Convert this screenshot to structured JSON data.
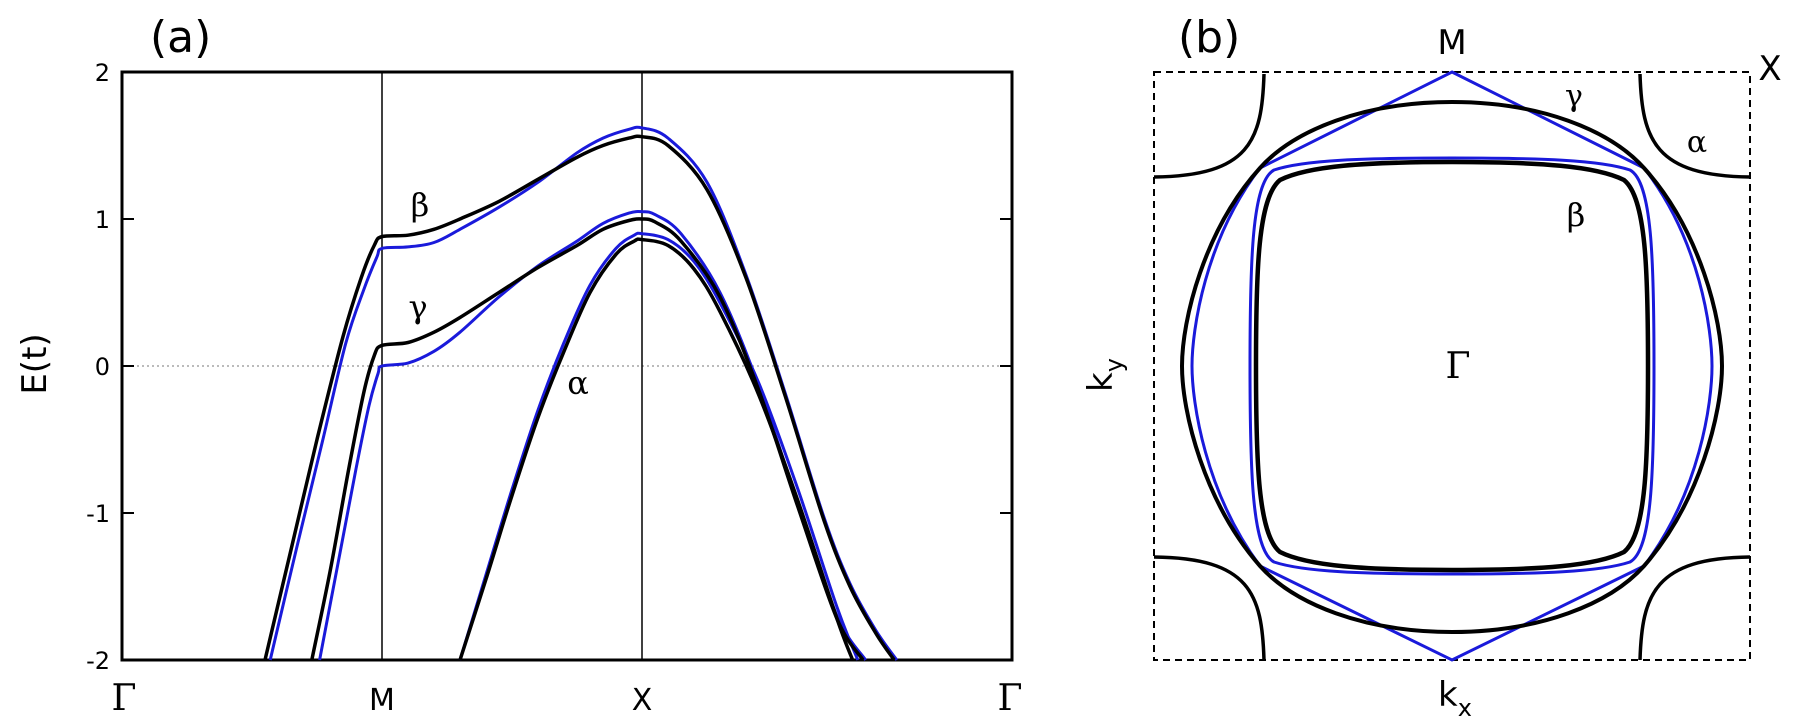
{
  "panel_a": {
    "label": "(a)",
    "chart_data": {
      "type": "line",
      "ylabel": "E(t)",
      "ylim": [
        -2,
        2
      ],
      "yticks": [
        "-2",
        "-1",
        "0",
        "1",
        "2"
      ],
      "xticks": [
        "Γ",
        "M",
        "X",
        "Γ"
      ],
      "x_positions": [
        0,
        1,
        2,
        3.5
      ],
      "zero_line": "dotted",
      "vertical_lines_at": [
        "M",
        "X"
      ],
      "band_labels": [
        {
          "text": "β",
          "x": 1.15,
          "y": 1.08
        },
        {
          "text": "γ",
          "x": 1.14,
          "y": 0.33
        },
        {
          "text": "α",
          "x": 1.75,
          "y": -0.12
        }
      ],
      "series": [
        {
          "color": "#000000",
          "band": "β",
          "x": [
            0.55,
            0.65,
            0.75,
            0.85,
            0.92,
            0.97,
            1.0,
            1.1,
            1.2,
            1.3,
            1.45,
            1.6,
            1.75,
            1.85,
            1.95,
            2.0,
            2.1,
            2.25,
            2.4,
            2.55,
            2.7,
            2.8,
            2.9,
            2.97
          ],
          "y": [
            -2.0,
            -1.25,
            -0.5,
            0.2,
            0.6,
            0.82,
            0.88,
            0.89,
            0.93,
            1.0,
            1.12,
            1.27,
            1.42,
            1.5,
            1.55,
            1.56,
            1.5,
            1.2,
            0.6,
            -0.2,
            -1.05,
            -1.5,
            -1.82,
            -2.0
          ]
        },
        {
          "color": "#1a1adb",
          "band": "β",
          "x": [
            0.57,
            0.67,
            0.77,
            0.86,
            0.93,
            0.98,
            1.0,
            1.1,
            1.2,
            1.3,
            1.45,
            1.6,
            1.75,
            1.85,
            1.95,
            2.0,
            2.1,
            2.25,
            2.4,
            2.55,
            2.7,
            2.8,
            2.9,
            2.98
          ],
          "y": [
            -2.0,
            -1.25,
            -0.52,
            0.15,
            0.52,
            0.74,
            0.8,
            0.81,
            0.84,
            0.93,
            1.08,
            1.25,
            1.45,
            1.55,
            1.61,
            1.62,
            1.55,
            1.25,
            0.62,
            -0.18,
            -1.03,
            -1.48,
            -1.8,
            -2.0
          ]
        },
        {
          "color": "#000000",
          "band": "γ",
          "x": [
            0.73,
            0.8,
            0.87,
            0.93,
            0.97,
            1.0,
            1.1,
            1.2,
            1.3,
            1.45,
            1.6,
            1.75,
            1.85,
            1.95,
            2.0,
            2.05,
            2.15,
            2.3,
            2.45,
            2.6,
            2.75,
            2.85
          ],
          "y": [
            -2.0,
            -1.4,
            -0.72,
            -0.18,
            0.07,
            0.14,
            0.16,
            0.23,
            0.33,
            0.5,
            0.67,
            0.82,
            0.93,
            0.99,
            1.0,
            0.98,
            0.85,
            0.47,
            -0.17,
            -0.96,
            -1.72,
            -2.0
          ]
        },
        {
          "color": "#1a1adb",
          "band": "γ",
          "x": [
            0.76,
            0.83,
            0.9,
            0.95,
            0.985,
            1.0,
            1.1,
            1.2,
            1.3,
            1.45,
            1.6,
            1.75,
            1.85,
            1.95,
            2.0,
            2.05,
            2.15,
            2.3,
            2.45,
            2.6,
            2.75,
            2.86
          ],
          "y": [
            -2.0,
            -1.35,
            -0.7,
            -0.27,
            -0.05,
            0.0,
            0.02,
            0.1,
            0.23,
            0.47,
            0.68,
            0.85,
            0.97,
            1.04,
            1.05,
            1.03,
            0.9,
            0.5,
            -0.14,
            -0.94,
            -1.7,
            -2.0
          ]
        },
        {
          "color": "#000000",
          "band": "α",
          "x": [
            1.3,
            1.4,
            1.5,
            1.6,
            1.7,
            1.8,
            1.9,
            1.97,
            2.0,
            2.1,
            2.2,
            2.3,
            2.45,
            2.6,
            2.75,
            2.81
          ],
          "y": [
            -2.0,
            -1.45,
            -0.88,
            -0.35,
            0.1,
            0.5,
            0.76,
            0.85,
            0.86,
            0.82,
            0.66,
            0.37,
            -0.2,
            -0.92,
            -1.72,
            -2.0
          ]
        },
        {
          "color": "#1a1adb",
          "band": "α",
          "x": [
            1.3,
            1.4,
            1.5,
            1.6,
            1.7,
            1.8,
            1.9,
            1.97,
            2.0,
            2.1,
            2.2,
            2.3,
            2.45,
            2.6,
            2.75,
            2.83
          ],
          "y": [
            -2.0,
            -1.42,
            -0.84,
            -0.3,
            0.16,
            0.55,
            0.8,
            0.89,
            0.9,
            0.86,
            0.71,
            0.43,
            -0.12,
            -0.84,
            -1.64,
            -2.0
          ]
        }
      ]
    }
  },
  "panel_b": {
    "label": "(b)",
    "xlabel_main": "k",
    "xlabel_sub": "x",
    "ylabel_main": "k",
    "ylabel_sub": "y",
    "labels": {
      "M": "M",
      "X": "X",
      "Gamma": "Γ",
      "alpha": "α",
      "beta": "β",
      "gamma": "γ"
    },
    "colors": {
      "black": "#000000",
      "blue": "#1a1adb"
    }
  }
}
